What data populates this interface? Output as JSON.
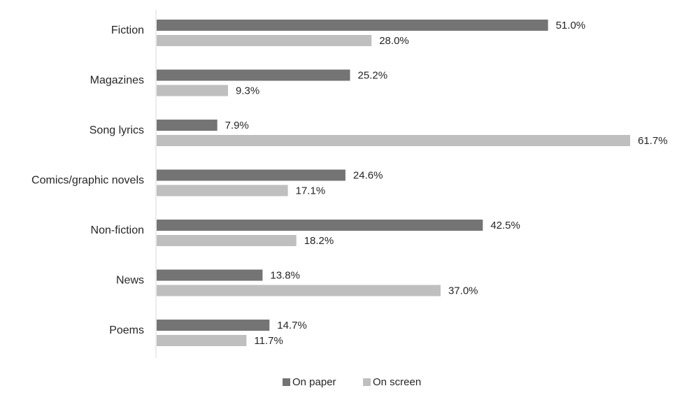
{
  "chart_data": {
    "type": "bar",
    "orientation": "horizontal",
    "title": "",
    "xlabel": "",
    "ylabel": "",
    "categories": [
      "Fiction",
      "Magazines",
      "Song lyrics",
      "Comics/graphic novels",
      "Non-fiction",
      "News",
      "Poems"
    ],
    "series": [
      {
        "name": "On paper",
        "color": "#747474",
        "values": [
          51.0,
          25.2,
          7.9,
          24.6,
          42.5,
          13.8,
          14.7
        ],
        "labels": [
          "51.0%",
          "25.2%",
          "7.9%",
          "24.6%",
          "42.5%",
          "13.8%",
          "14.7%"
        ]
      },
      {
        "name": "On screen",
        "color": "#bfbfbf",
        "values": [
          28.0,
          9.3,
          61.7,
          17.1,
          18.2,
          37.0,
          11.7
        ],
        "labels": [
          "28.0%",
          "9.3%",
          "61.7%",
          "17.1%",
          "18.2%",
          "37.0%",
          "11.7%"
        ]
      }
    ],
    "xlim": [
      0,
      61.7
    ],
    "grid": false,
    "axis_line_color": "#d9d9d9",
    "legend_position": "bottom"
  }
}
